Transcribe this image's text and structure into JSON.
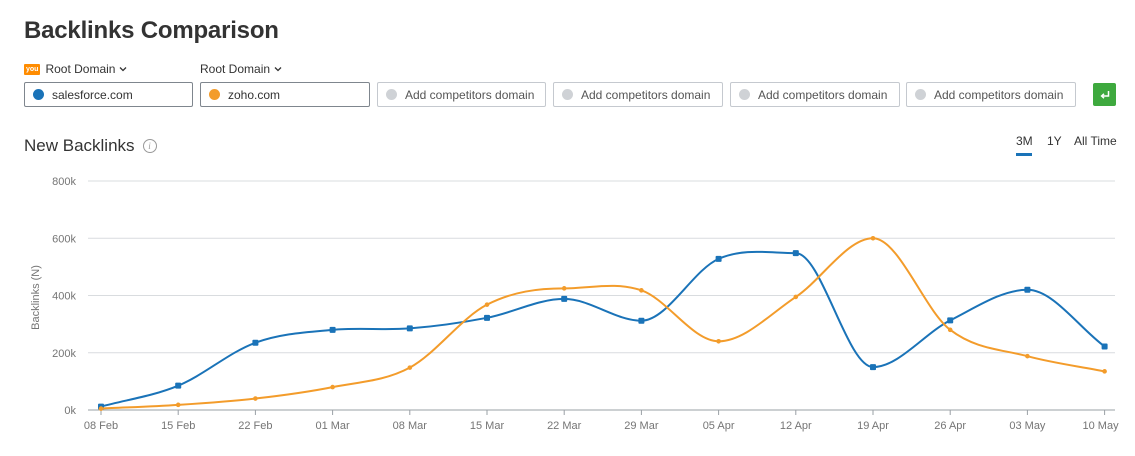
{
  "header": {
    "title": "Backlinks Comparison"
  },
  "domain_selectors": [
    {
      "label": "Root Domain",
      "you_badge": "you"
    },
    {
      "label": "Root Domain"
    }
  ],
  "domains": [
    {
      "value": "salesforce.com",
      "color": "#1a73b8"
    },
    {
      "value": "zoho.com",
      "color": "#f39c2b"
    }
  ],
  "competitor_placeholders": [
    "Add competitors domain",
    "Add competitors domain",
    "Add competitors domain",
    "Add competitors domain"
  ],
  "section": {
    "title": "New Backlinks"
  },
  "time_ranges": {
    "options": [
      "3M",
      "1Y",
      "All Time"
    ],
    "selected": "3M"
  },
  "chart_data": {
    "type": "line",
    "ylabel": "Backlinks (N)",
    "ylim": [
      0,
      800000
    ],
    "yticks": [
      0,
      200000,
      400000,
      600000,
      800000
    ],
    "ytick_labels": [
      "0k",
      "200k",
      "400k",
      "600k",
      "800k"
    ],
    "categories": [
      "08 Feb",
      "15 Feb",
      "22 Feb",
      "01 Mar",
      "08 Mar",
      "15 Mar",
      "22 Mar",
      "29 Mar",
      "05 Apr",
      "12 Apr",
      "19 Apr",
      "26 Apr",
      "03 May",
      "10 May"
    ],
    "grid": true,
    "series": [
      {
        "name": "salesforce.com",
        "color": "#1a73b8",
        "values": [
          12000,
          85000,
          235000,
          280000,
          285000,
          322000,
          388000,
          312000,
          528000,
          548000,
          150000,
          313000,
          420000,
          222000
        ]
      },
      {
        "name": "zoho.com",
        "color": "#f39c2b",
        "values": [
          5000,
          18000,
          40000,
          80000,
          148000,
          368000,
          425000,
          418000,
          240000,
          395000,
          600000,
          280000,
          188000,
          135000
        ]
      }
    ]
  }
}
